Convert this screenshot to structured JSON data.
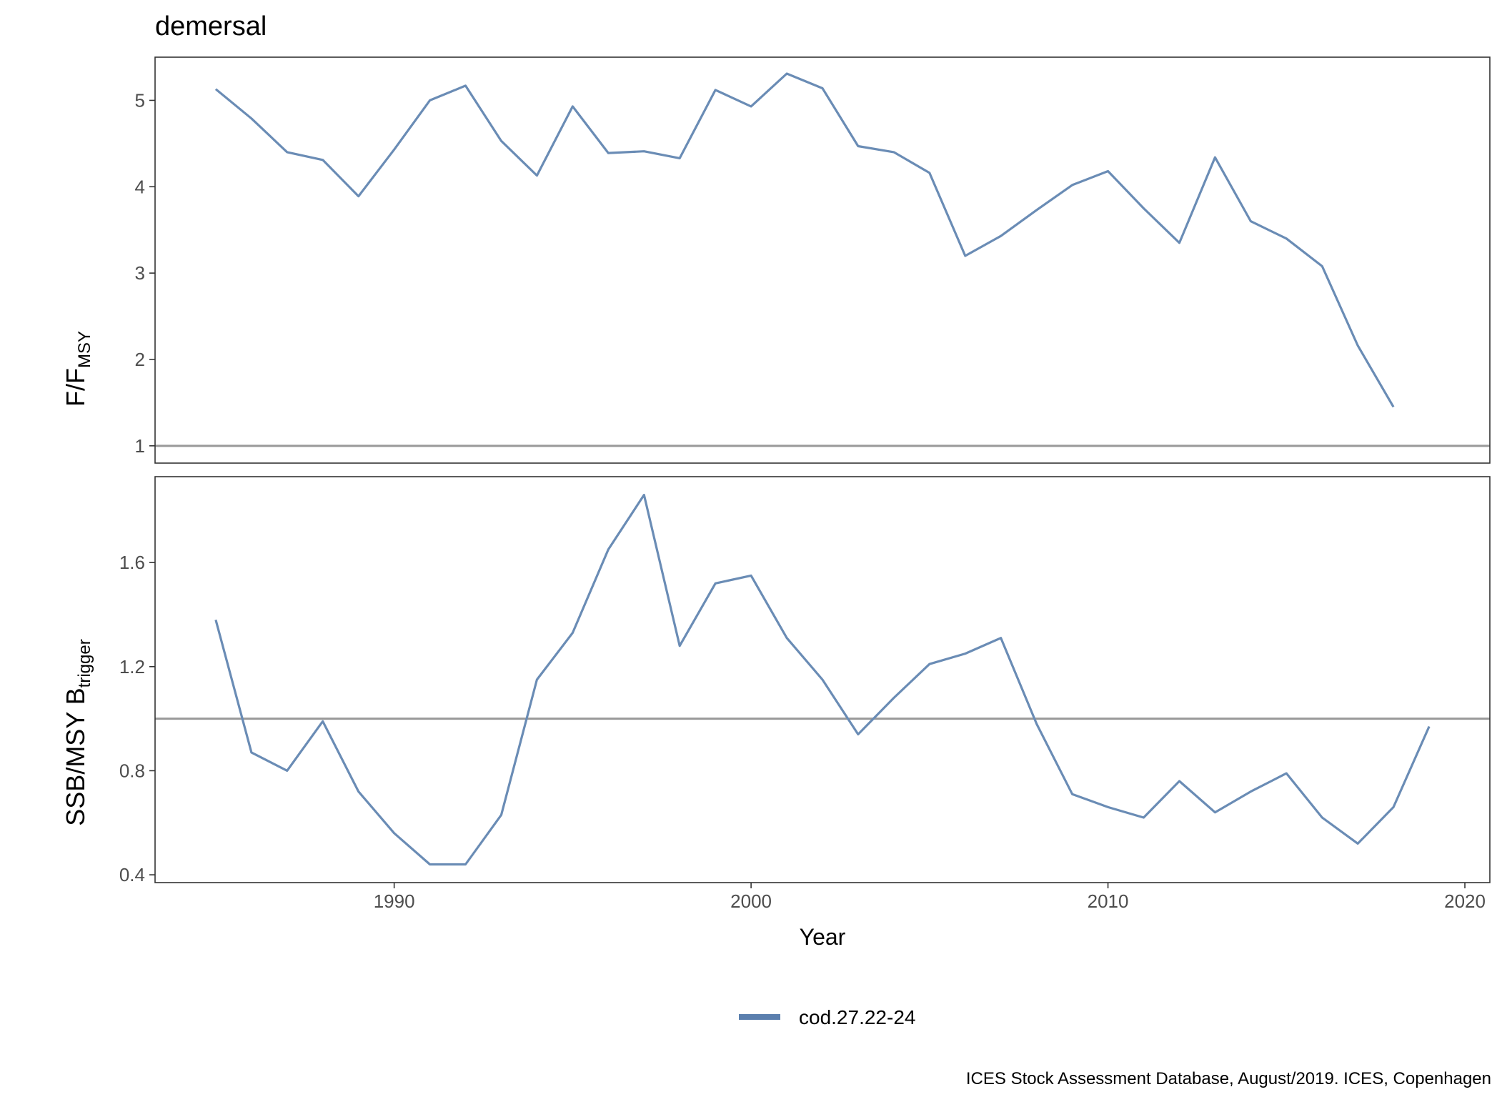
{
  "chart_data": {
    "title": "demersal",
    "xlabel": "Year",
    "x_ticks": [
      1990,
      2000,
      2010,
      2020
    ],
    "xlim": [
      1983.3,
      2020.7
    ],
    "caption": "ICES Stock Assessment Database, August/2019. ICES, Copenhagen",
    "legend": {
      "position": "bottom",
      "entries": [
        "cod.27.22-24"
      ]
    },
    "series_color": "#6a8cb5",
    "legend_color": "#5b7fae",
    "reference_line_color": "#999999",
    "grid": false,
    "panels": [
      {
        "type": "line",
        "ylabel_main": "F/F",
        "ylabel_sub": "MSY",
        "ylim": [
          0.8,
          5.5
        ],
        "y_ticks": [
          1,
          2,
          3,
          4,
          5
        ],
        "reference_line": 1,
        "series": [
          {
            "name": "cod.27.22-24",
            "x": [
              1985,
              1986,
              1987,
              1988,
              1989,
              1990,
              1991,
              1992,
              1993,
              1994,
              1995,
              1996,
              1997,
              1998,
              1999,
              2000,
              2001,
              2002,
              2003,
              2004,
              2005,
              2006,
              2007,
              2008,
              2009,
              2010,
              2011,
              2012,
              2013,
              2014,
              2015,
              2016,
              2017,
              2018
            ],
            "y": [
              5.13,
              4.79,
              4.4,
              4.31,
              3.89,
              4.43,
              5.0,
              5.17,
              4.53,
              4.13,
              4.93,
              4.39,
              4.41,
              4.33,
              5.12,
              4.93,
              5.31,
              5.14,
              4.47,
              4.4,
              4.16,
              3.2,
              3.43,
              3.73,
              4.02,
              4.18,
              3.75,
              3.35,
              4.34,
              3.6,
              3.4,
              3.08,
              2.16,
              1.45
            ]
          }
        ]
      },
      {
        "type": "line",
        "ylabel_main": "SSB/MSY B",
        "ylabel_sub": "trigger",
        "ylim": [
          0.37,
          1.93
        ],
        "y_ticks": [
          0.4,
          0.8,
          1.2,
          1.6
        ],
        "reference_line": 1,
        "series": [
          {
            "name": "cod.27.22-24",
            "x": [
              1985,
              1986,
              1987,
              1988,
              1989,
              1990,
              1991,
              1992,
              1993,
              1994,
              1995,
              1996,
              1997,
              1998,
              1999,
              2000,
              2001,
              2002,
              2003,
              2004,
              2005,
              2006,
              2007,
              2008,
              2009,
              2010,
              2011,
              2012,
              2013,
              2014,
              2015,
              2016,
              2017,
              2018,
              2019
            ],
            "y": [
              1.38,
              0.87,
              0.8,
              0.99,
              0.72,
              0.56,
              0.44,
              0.44,
              0.63,
              1.15,
              1.33,
              1.65,
              1.86,
              1.28,
              1.52,
              1.55,
              1.31,
              1.15,
              0.94,
              1.08,
              1.21,
              1.25,
              1.31,
              0.98,
              0.71,
              0.66,
              0.62,
              0.76,
              0.64,
              0.72,
              0.79,
              0.62,
              0.52,
              0.66,
              0.97
            ]
          }
        ]
      }
    ]
  }
}
